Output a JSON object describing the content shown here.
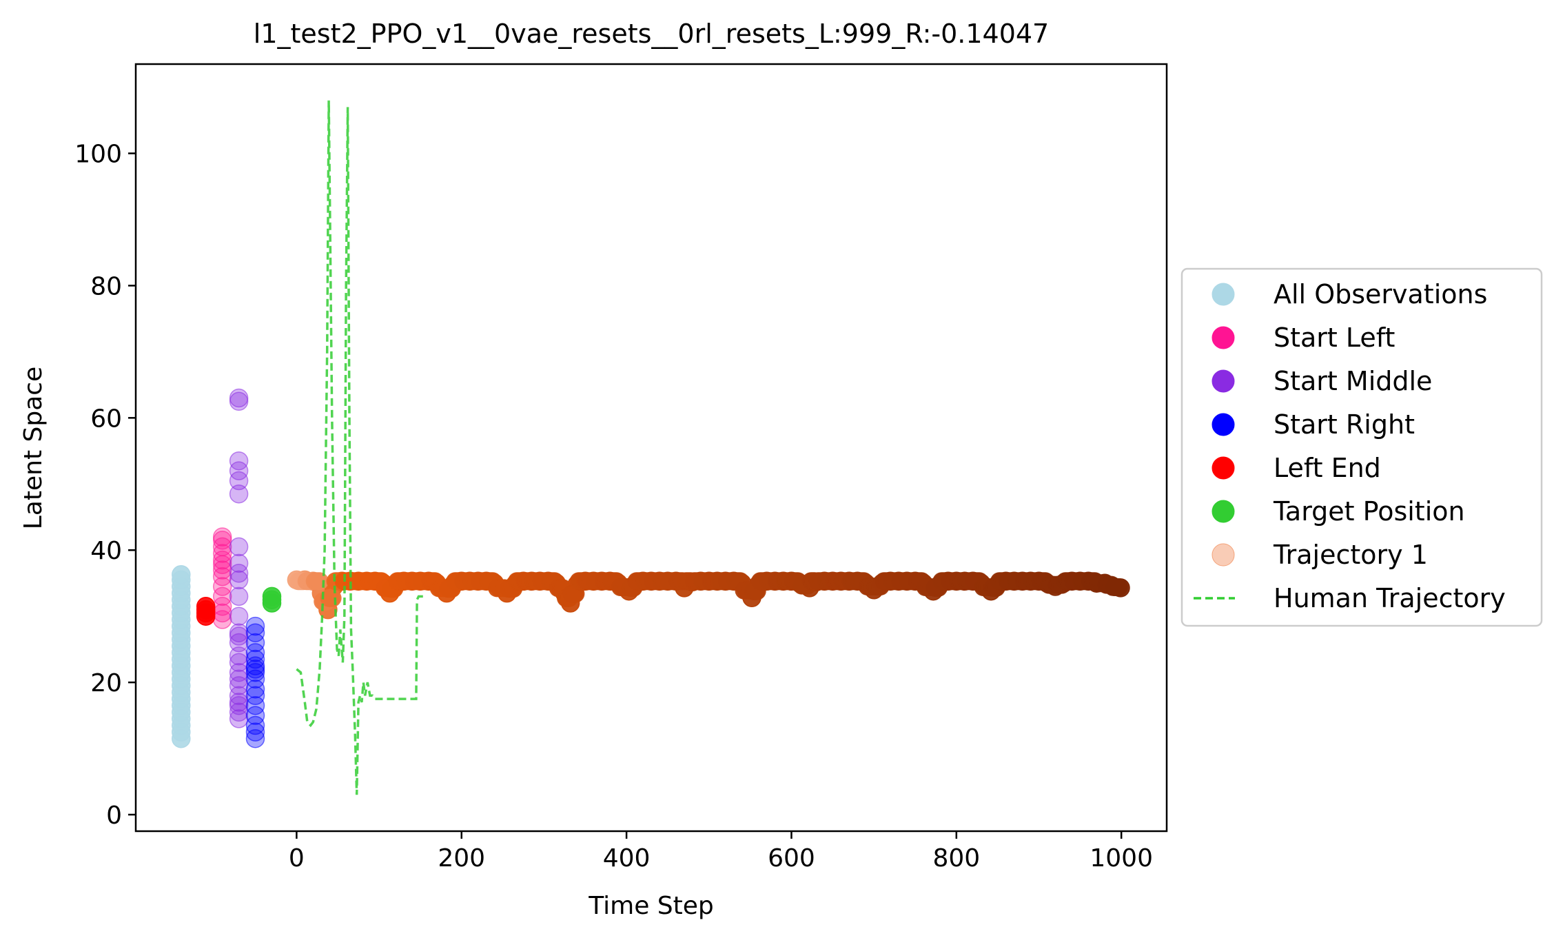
{
  "chart_data": {
    "type": "scatter",
    "title": "l1_test2_PPO_v1__0vae_resets__0rl_resets_L:999_R:-0.14047",
    "xlabel": "Time Step",
    "ylabel": "Latent Space",
    "xlim": [
      -195,
      1055
    ],
    "ylim": [
      -2.5,
      113.5
    ],
    "xticks": [
      0,
      200,
      400,
      600,
      800,
      1000
    ],
    "yticks": [
      0,
      20,
      40,
      60,
      80,
      100
    ],
    "grid": false,
    "legend_position": "right, outside plot",
    "legend": [
      {
        "label": "All Observations",
        "color": "#add8e6",
        "marker": "circle"
      },
      {
        "label": "Start Left",
        "color": "#ff1493",
        "marker": "circle"
      },
      {
        "label": "Start Middle",
        "color": "#8a2be2",
        "marker": "circle"
      },
      {
        "label": "Start Right",
        "color": "#0000ff",
        "marker": "circle"
      },
      {
        "label": "Left End",
        "color": "#ff0000",
        "marker": "circle"
      },
      {
        "label": "Target Position",
        "color": "#32cd32",
        "marker": "circle"
      },
      {
        "label": "Trajectory 1",
        "color": "#f4a37a",
        "marker": "circle"
      },
      {
        "label": "Human Trajectory",
        "color": "#32cd32",
        "marker": "dashed-line"
      }
    ],
    "series": [
      {
        "name": "All Observations",
        "color": "#add8e6",
        "x": [
          -140,
          -140,
          -140,
          -140,
          -140,
          -140,
          -140,
          -140,
          -140,
          -140,
          -140,
          -140,
          -140,
          -140,
          -140,
          -140,
          -140,
          -140,
          -140,
          -140,
          -140,
          -140,
          -140,
          -140,
          -140,
          -140
        ],
        "y": [
          11.5,
          12.5,
          13.5,
          14.5,
          15.5,
          16.5,
          17.5,
          18.5,
          19.5,
          20.5,
          21.5,
          22.5,
          23.5,
          24.5,
          25.5,
          26.5,
          27.5,
          28.5,
          29.5,
          30.5,
          31.5,
          32.5,
          33.5,
          34.5,
          35.5,
          36.3
        ]
      },
      {
        "name": "Start Left",
        "color": "#ff1493",
        "x": [
          -90,
          -90,
          -90,
          -90,
          -90,
          -90,
          -90,
          -90,
          -90,
          -90,
          -90,
          -90,
          -90
        ],
        "y": [
          29.5,
          30.5,
          31.5,
          33.0,
          34.5,
          36.0,
          37.0,
          37.8,
          38.5,
          39.5,
          40.5,
          41.5,
          42.0
        ]
      },
      {
        "name": "Start Middle",
        "color": "#8a2be2",
        "x": [
          -70,
          -70,
          -70,
          -70,
          -70,
          -70,
          -70,
          -70,
          -70,
          -70,
          -70,
          -70,
          -70,
          -70,
          -70,
          -70,
          -70,
          -70,
          -70,
          -70,
          -70,
          -70,
          -70,
          -70,
          -70
        ],
        "y": [
          14.5,
          15.5,
          16.5,
          17.0,
          18.0,
          19.5,
          20.5,
          21.5,
          23.0,
          24.0,
          26.0,
          27.0,
          30.0,
          33.0,
          35.5,
          36.5,
          38.0,
          40.5,
          48.5,
          50.5,
          52.0,
          53.5,
          62.5,
          63.0,
          27.5
        ]
      },
      {
        "name": "Start Right",
        "color": "#0000ff",
        "x": [
          -50,
          -50,
          -50,
          -50,
          -50,
          -50,
          -50,
          -50,
          -50,
          -50,
          -50,
          -50,
          -50,
          -50,
          -50,
          -50
        ],
        "y": [
          11.5,
          12.5,
          13.5,
          15.0,
          16.5,
          18.0,
          19.0,
          20.5,
          21.5,
          22.0,
          22.5,
          23.5,
          24.5,
          26.0,
          27.5,
          28.5
        ]
      },
      {
        "name": "Left End",
        "color": "#ff0000",
        "x": [
          -110,
          -110,
          -110,
          -110
        ],
        "y": [
          30.0,
          30.5,
          31.0,
          31.5
        ]
      },
      {
        "name": "Target Position",
        "color": "#32cd32",
        "x": [
          -30,
          -30,
          -30
        ],
        "y": [
          32.0,
          32.5,
          33.0
        ]
      },
      {
        "name": "Trajectory 1",
        "color": "#f4a37a",
        "color_end": "#7f2704",
        "x": [
          0,
          10,
          20,
          30,
          38,
          45,
          55,
          65,
          75,
          85,
          95,
          105,
          113,
          120,
          130,
          140,
          150,
          160,
          170,
          182,
          190,
          200,
          210,
          220,
          230,
          240,
          255,
          265,
          275,
          285,
          295,
          305,
          315,
          325,
          332,
          340,
          350,
          360,
          370,
          380,
          390,
          403,
          410,
          420,
          430,
          440,
          450,
          460,
          470,
          480,
          490,
          500,
          510,
          520,
          530,
          540,
          552,
          560,
          570,
          580,
          590,
          600,
          610,
          622,
          630,
          640,
          650,
          660,
          670,
          680,
          690,
          700,
          710,
          720,
          730,
          740,
          750,
          760,
          772,
          780,
          790,
          800,
          810,
          820,
          830,
          842,
          850,
          860,
          870,
          880,
          890,
          900,
          910,
          920,
          930,
          940,
          950,
          960,
          970,
          980,
          990,
          999
        ],
        "y": [
          35.5,
          35.5,
          35.3,
          33.5,
          31.0,
          34.5,
          35.3,
          35.3,
          35.3,
          35.3,
          35.3,
          35.0,
          33.5,
          34.8,
          35.3,
          35.3,
          35.3,
          35.3,
          35.0,
          33.5,
          34.8,
          35.3,
          35.3,
          35.3,
          35.3,
          35.0,
          33.5,
          34.8,
          35.3,
          35.3,
          35.3,
          35.3,
          35.0,
          33.5,
          32.0,
          34.8,
          35.3,
          35.3,
          35.3,
          35.3,
          35.0,
          33.8,
          34.8,
          35.3,
          35.3,
          35.3,
          35.3,
          35.3,
          34.3,
          35.2,
          35.3,
          35.3,
          35.3,
          35.3,
          35.3,
          35.0,
          32.8,
          34.8,
          35.3,
          35.3,
          35.3,
          35.3,
          35.0,
          34.3,
          35.2,
          35.3,
          35.3,
          35.3,
          35.3,
          35.3,
          35.0,
          34.0,
          35.0,
          35.3,
          35.3,
          35.3,
          35.3,
          35.0,
          33.8,
          34.8,
          35.3,
          35.3,
          35.3,
          35.3,
          35.0,
          33.8,
          34.8,
          35.3,
          35.3,
          35.3,
          35.3,
          35.3,
          35.0,
          34.5,
          35.0,
          35.3,
          35.3,
          35.3,
          35.0,
          35.0,
          34.5,
          34.3
        ]
      },
      {
        "name": "Human Trajectory",
        "color": "#32cd32",
        "x": [
          0,
          5,
          10,
          13,
          17,
          20,
          24,
          28,
          31,
          34,
          37,
          39,
          41,
          43,
          46,
          49,
          51,
          53,
          56,
          58,
          60,
          62,
          64,
          66,
          68,
          71,
          73,
          75,
          77,
          79,
          81,
          83,
          86,
          89,
          92,
          95,
          100,
          110,
          120,
          130,
          140,
          145,
          146,
          148,
          150,
          155
        ],
        "y": [
          22,
          21.5,
          17,
          14,
          13.5,
          14,
          16,
          22,
          30,
          40,
          70,
          108,
          85,
          60,
          35,
          25,
          24,
          28,
          23,
          30,
          80,
          107,
          60,
          28,
          22,
          12,
          3,
          17,
          18,
          17,
          20,
          18,
          20,
          18,
          18,
          17.5,
          17.5,
          17.5,
          17.5,
          17.5,
          17.5,
          17.5,
          32.5,
          33,
          33,
          33
        ]
      }
    ]
  }
}
